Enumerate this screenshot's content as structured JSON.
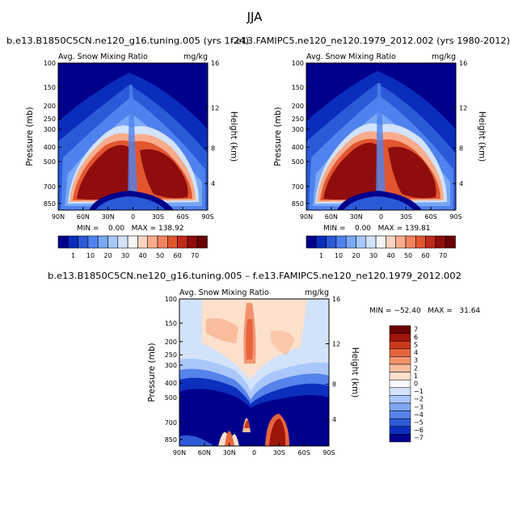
{
  "figure_title": "JJA",
  "colors": {
    "full_scale": [
      "#00008c",
      "#0a2dbc",
      "#2b5ad8",
      "#4f82ee",
      "#7aa8f6",
      "#a6c8fb",
      "#d2e3fb",
      "#f6f6f6",
      "#fbd4c0",
      "#f8ac8c",
      "#f2835f",
      "#e2562f",
      "#c02b1a",
      "#8f0d0d",
      "#6b0000"
    ],
    "diff_scale": [
      "#00008c",
      "#0d2fbd",
      "#2f5bd6",
      "#5683ea",
      "#7fa7f4",
      "#a9c7fa",
      "#d2e2fb",
      "#f8f8f8",
      "#fde0cc",
      "#f9bd9e",
      "#f3946f",
      "#e7643e",
      "#cc3a1e",
      "#9d1508",
      "#6b0000"
    ]
  },
  "chart_data": [
    {
      "type": "heatmap",
      "title": "b.e13.B1850C5CN.ne120_g16.tuning.005 (yrs 1-24)",
      "left_label": "Avg. Snow Mixing Ratio",
      "right_label": "mg/kg",
      "xlabel": "",
      "ylabel": "Pressure (mb)",
      "y2label": "Height (km)",
      "x_ticks": [
        "90N",
        "60N",
        "30N",
        "0",
        "30S",
        "60S",
        "90S"
      ],
      "y_ticks": [
        "100",
        "150",
        "200",
        "250",
        "300",
        "400",
        "500",
        "700",
        "850"
      ],
      "y2_ticks": [
        "16",
        "12",
        "8",
        "4"
      ],
      "stats": "MIN =    0.00   MAX = 138.92",
      "colorbar_labels": [
        "1",
        "10",
        "20",
        "30",
        "40",
        "50",
        "60",
        "70"
      ],
      "max": 138.92,
      "min": 0.0
    },
    {
      "type": "heatmap",
      "title": "f.e13.FAMIPC5.ne120_ne120.1979_2012.002 (yrs 1980-2012)",
      "left_label": "Avg. Snow Mixing Ratio",
      "right_label": "mg/kg",
      "xlabel": "",
      "ylabel": "Pressure (mb)",
      "y2label": "Height (km)",
      "x_ticks": [
        "90N",
        "60N",
        "30N",
        "0",
        "30S",
        "60S",
        "90S"
      ],
      "y_ticks": [
        "100",
        "150",
        "200",
        "250",
        "300",
        "400",
        "500",
        "700",
        "850"
      ],
      "y2_ticks": [
        "16",
        "12",
        "8",
        "4"
      ],
      "stats": "MIN =    0.00   MAX = 139.81",
      "colorbar_labels": [
        "1",
        "10",
        "20",
        "30",
        "40",
        "50",
        "60",
        "70"
      ],
      "max": 139.81,
      "min": 0.0
    },
    {
      "type": "heatmap",
      "title": "b.e13.B1850C5CN.ne120_g16.tuning.005 – f.e13.FAMIPC5.ne120_ne120.1979_2012.002",
      "left_label": "Avg. Snow Mixing Ratio",
      "right_label": "mg/kg",
      "xlabel": "",
      "ylabel": "Pressure (mb)",
      "y2label": "Height (km)",
      "x_ticks": [
        "90N",
        "60N",
        "30N",
        "0",
        "30S",
        "60S",
        "90S"
      ],
      "y_ticks": [
        "100",
        "150",
        "200",
        "250",
        "300",
        "400",
        "500",
        "700",
        "850"
      ],
      "y2_ticks": [
        "16",
        "12",
        "8",
        "4"
      ],
      "stats": "MIN = −52.40   MAX =   31.64",
      "colorbar_labels": [
        "7",
        "6",
        "5",
        "4",
        "3",
        "2",
        "1",
        "0",
        "−1",
        "−2",
        "−3",
        "−4",
        "−5",
        "−6",
        "−7"
      ],
      "max": 31.64,
      "min": -52.4
    }
  ]
}
